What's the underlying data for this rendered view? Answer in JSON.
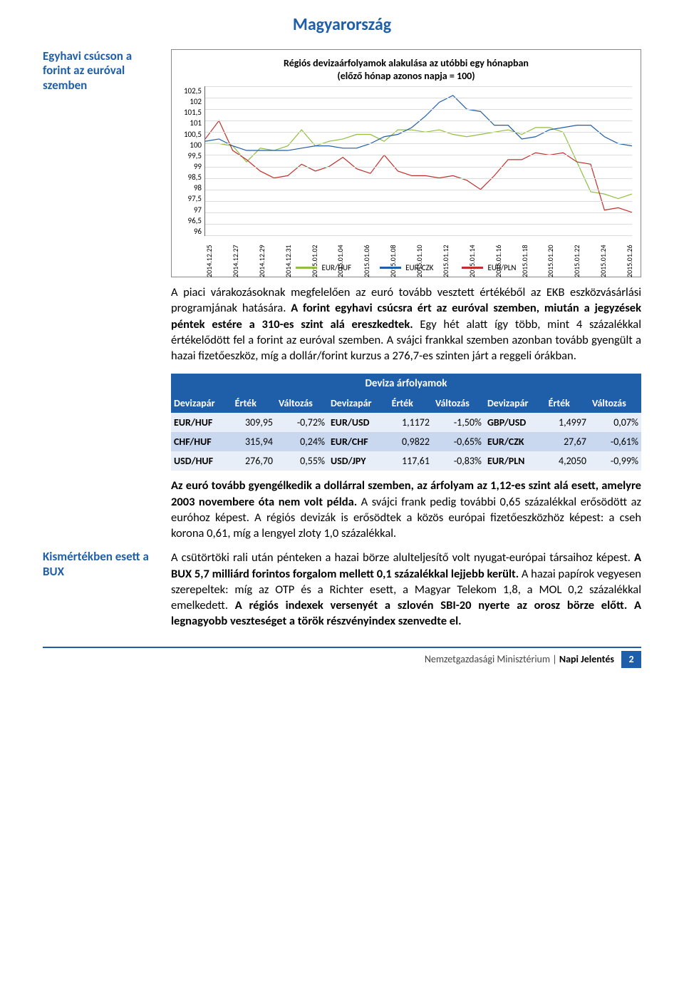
{
  "page_title": "Magyarország",
  "sidebar": {
    "block1_title": "Egyhavi csúcson a forint az euróval szemben",
    "block2_title": "Kismértékben esett a BUX"
  },
  "chart": {
    "type": "line",
    "title_line1": "Régiós devizaárfolyamok alakulása az utóbbi egy hónapban",
    "title_line2": "(előző hónap azonos napja = 100)",
    "ylim": [
      96,
      102.5
    ],
    "ytick_step": 0.5,
    "yticks": [
      "102,5",
      "102",
      "101,5",
      "101",
      "100,5",
      "100",
      "99,5",
      "99",
      "98,5",
      "98",
      "97,5",
      "97",
      "96,5",
      "96"
    ],
    "xlabels": [
      "2014.12.25",
      "2014.12.27",
      "2014.12.29",
      "2014.12.31",
      "2015.01.02",
      "2015.01.04",
      "2015.01.06",
      "2015.01.08",
      "2015.01.10",
      "2015.01.12",
      "2015.01.14",
      "2015.01.16",
      "2015.01.18",
      "2015.01.20",
      "2015.01.22",
      "2015.01.24",
      "2015.01.26"
    ],
    "series": [
      {
        "name": "EUR/HUF",
        "color": "#8fbf3f",
        "values": [
          100.0,
          100.0,
          99.9,
          99.2,
          99.8,
          99.7,
          99.9,
          100.6,
          99.9,
          100.1,
          100.2,
          100.4,
          100.4,
          100.1,
          100.6,
          100.6,
          100.5,
          100.6,
          100.4,
          100.3,
          100.4,
          100.5,
          100.6,
          100.4,
          100.7,
          100.7,
          100.5,
          99.2,
          97.9,
          97.8,
          97.6,
          97.8
        ]
      },
      {
        "name": "EUR/CZK",
        "color": "#1f5ea8",
        "values": [
          100.1,
          100.2,
          99.9,
          99.7,
          99.7,
          99.7,
          99.7,
          99.8,
          99.9,
          99.9,
          99.8,
          99.8,
          100.0,
          100.3,
          100.4,
          100.7,
          101.2,
          101.8,
          102.1,
          101.5,
          101.4,
          100.8,
          100.8,
          100.2,
          100.3,
          100.6,
          100.7,
          100.8,
          100.8,
          100.3,
          100.0,
          99.9
        ]
      },
      {
        "name": "EUR/PLN",
        "color": "#c0302b",
        "values": [
          100.2,
          101.0,
          99.7,
          99.3,
          98.8,
          98.5,
          98.6,
          99.1,
          98.8,
          99.0,
          99.4,
          98.9,
          98.7,
          99.5,
          98.8,
          98.6,
          98.6,
          98.5,
          98.6,
          98.4,
          98.0,
          98.6,
          99.3,
          99.3,
          99.6,
          99.5,
          99.6,
          99.2,
          99.1,
          97.1,
          97.2,
          97.0
        ]
      }
    ],
    "legend_labels": [
      "EUR/HUF",
      "EUR/CZK",
      "EUR/PLN"
    ],
    "background_color": "#ffffff",
    "grid_color": "#dddddd"
  },
  "para1_a": "A piaci várakozásoknak megfelelően az euró tovább vesztett értékéből az EKB eszközvásárlási programjának hatására. ",
  "para1_b": "A forint egyhavi csúcsra ért az euróval szemben, miután a jegyzések péntek estére a 310-es szint alá ereszkedtek.",
  "para1_c": " Egy hét alatt így több, mint 4 százalékkal értékelődött fel a forint az euróval szemben. A svájci frankkal szemben azonban tovább gyengült a hazai fizetőeszköz, míg a dollár/forint kurzus a 276,7-es szinten járt a reggeli órákban.",
  "table": {
    "title": "Deviza árfolyamok",
    "headers": [
      "Devizapár",
      "Érték",
      "Változás",
      "Devizapár",
      "Érték",
      "Változás",
      "Devizapár",
      "Érték",
      "Változás"
    ],
    "rows": [
      [
        "EUR/HUF",
        "309,95",
        "-0,72%",
        "EUR/USD",
        "1,1172",
        "-1,50%",
        "GBP/USD",
        "1,4997",
        "0,07%"
      ],
      [
        "CHF/HUF",
        "315,94",
        "0,24%",
        "EUR/CHF",
        "0,9822",
        "-0,65%",
        "EUR/CZK",
        "27,67",
        "-0,61%"
      ],
      [
        "USD/HUF",
        "276,70",
        "0,55%",
        "USD/JPY",
        "117,61",
        "-0,83%",
        "EUR/PLN",
        "4,2050",
        "-0,99%"
      ]
    ],
    "header_bg": "#1f5ea8",
    "row_odd_bg": "#e8eef7",
    "row_even_bg": "#c9d8ee"
  },
  "para2_a": "Az euró tovább gyengélkedik a dollárral szemben, az árfolyam az 1,12-es szint alá esett, amelyre 2003 novembere óta nem volt példa.",
  "para2_b": " A svájci frank pedig további 0,65 százalékkal erősödött az euróhoz képest. A régiós devizák is erősödtek a közös európai fizetőeszközhöz képest: a cseh korona 0,61, míg a lengyel zloty 1,0 százalékkal.",
  "para3_a": "A csütörtöki rali után pénteken a hazai börze alulteljesítő volt nyugat-európai társaihoz képest. ",
  "para3_b": "A BUX 5,7 milliárd forintos forgalom mellett 0,1 százalékkal lejjebb került.",
  "para3_c": " A hazai papírok vegyesen szerepeltek: míg az OTP és a Richter esett, a Magyar Telekom 1,8, a MOL 0,2 százalékkal emelkedett. ",
  "para3_d": "A régiós indexek versenyét a szlovén SBI-20 nyerte az orosz börze előtt. A legnagyobb veszteséget a török részvényindex szenvedte el.",
  "footer": {
    "org": "Nemzetgazdasági Minisztérium",
    "sep": " | ",
    "doc": "Napi Jelentés",
    "page": "2"
  }
}
